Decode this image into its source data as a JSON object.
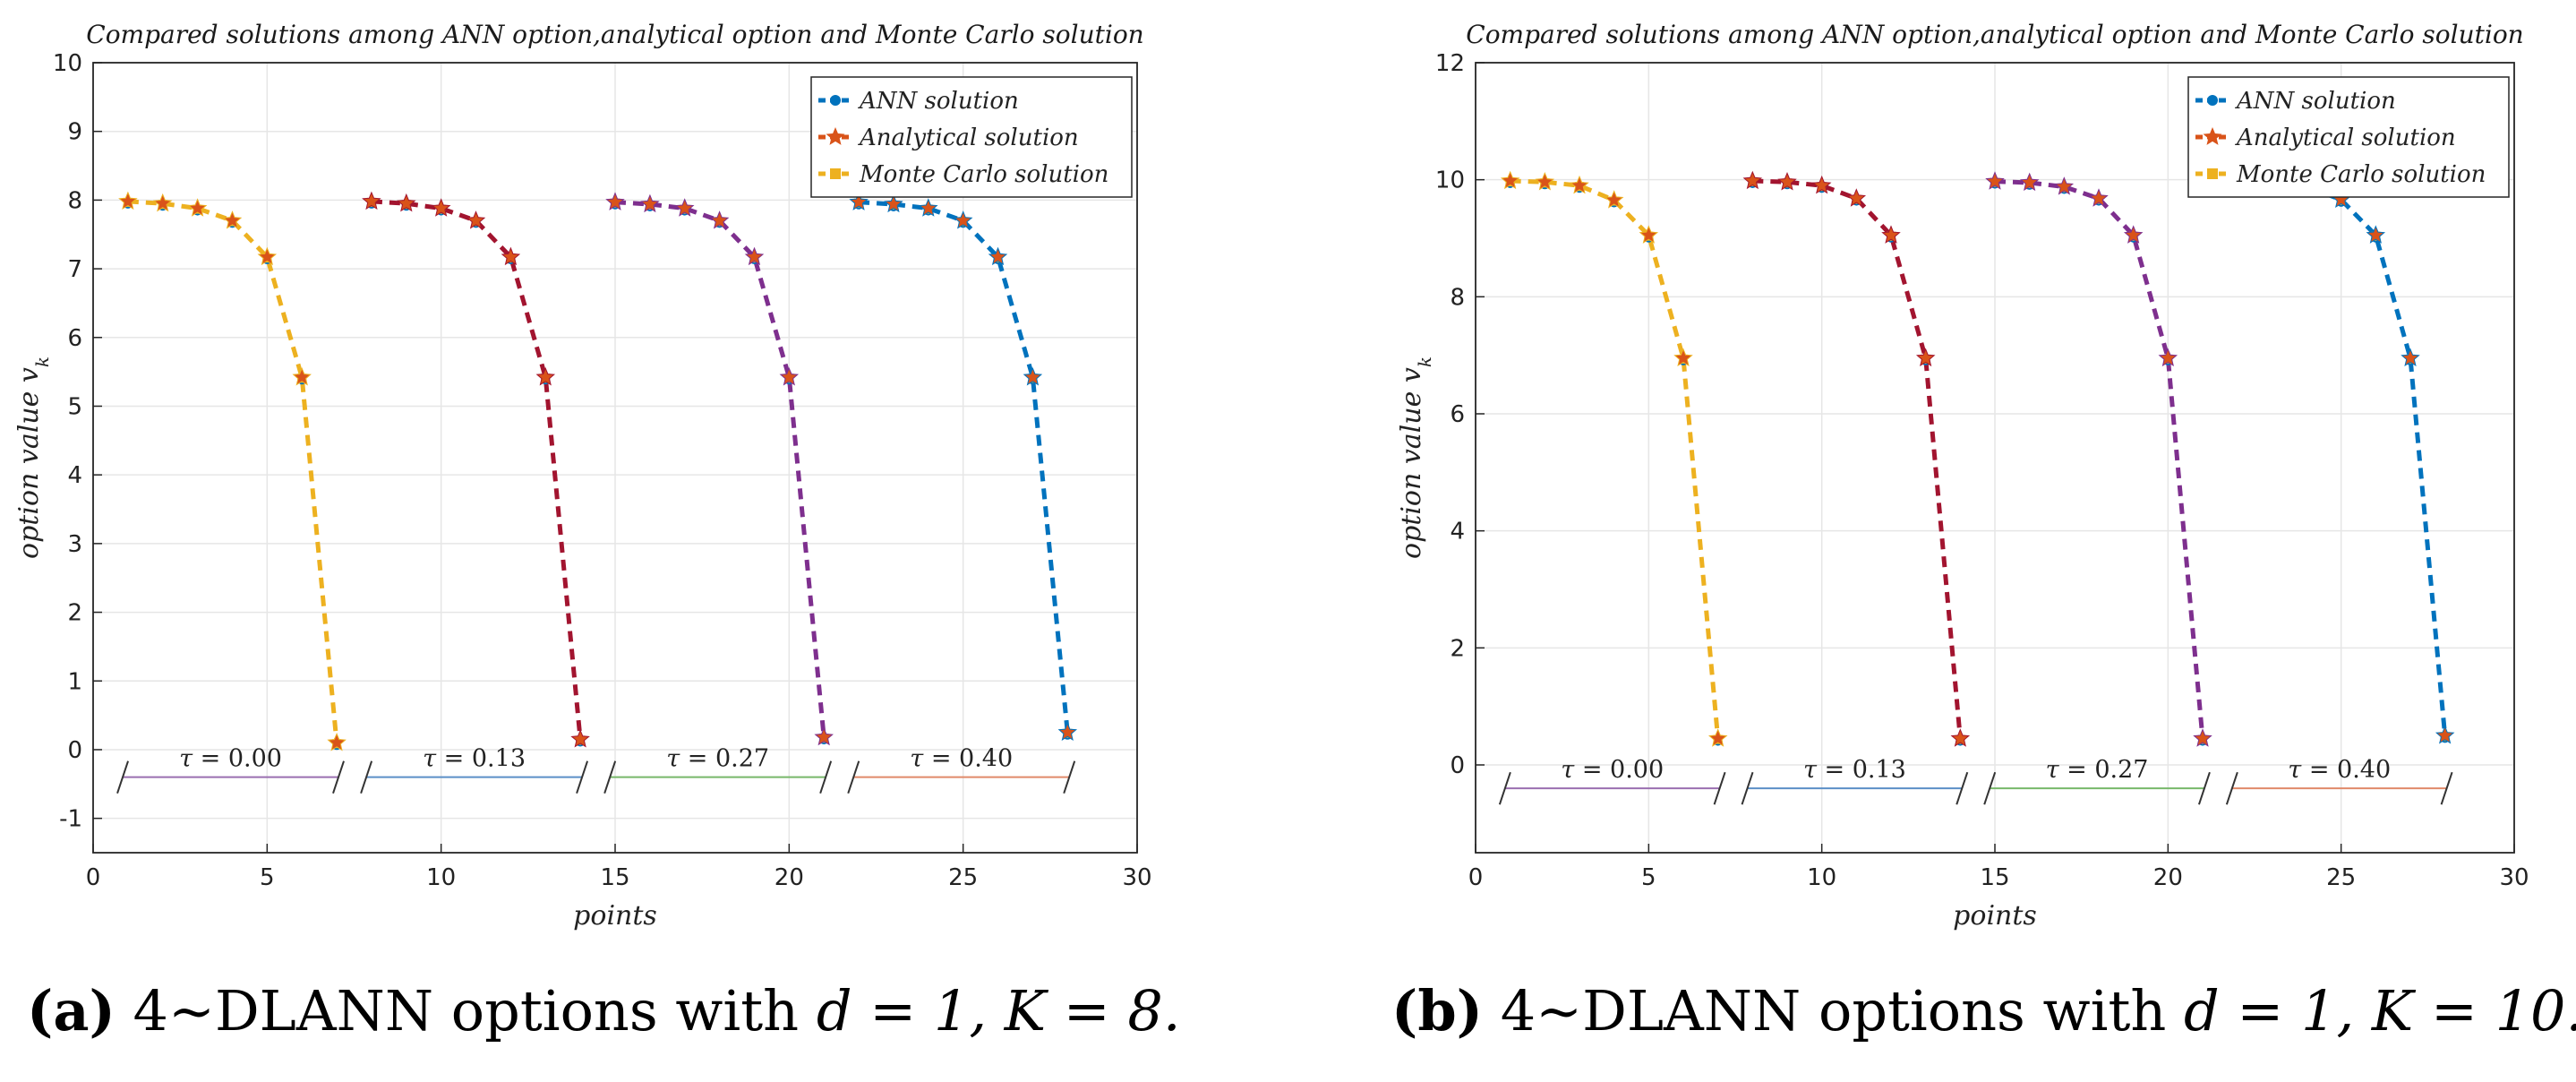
{
  "chart_data": [
    {
      "type": "line",
      "panel": "a",
      "title": "Compared solutions among ANN option,analytical option and Monte Carlo solution",
      "xlabel": "points",
      "ylabel": "option value v_k",
      "xlim": [
        0,
        30
      ],
      "ylim": [
        -1.5,
        10
      ],
      "xticks": [
        "0",
        "5",
        "10",
        "15",
        "20",
        "25",
        "30"
      ],
      "yticks": [
        "-1",
        "0",
        "1",
        "2",
        "3",
        "4",
        "5",
        "6",
        "7",
        "8",
        "9",
        "10"
      ],
      "grid": true,
      "legend_position": "top-right",
      "legend": [
        "ANN solution",
        "Analytical solution",
        "Monte Carlo solution"
      ],
      "groups": [
        {
          "tau_label": "τ = 0.00",
          "color": "#EDB120",
          "x": [
            1,
            2,
            3,
            4,
            5,
            6,
            7
          ],
          "y": [
            7.98,
            7.95,
            7.88,
            7.7,
            7.17,
            5.42,
            0.1
          ]
        },
        {
          "tau_label": "τ = 0.13",
          "color": "#A2142F",
          "x": [
            8,
            9,
            10,
            11,
            12,
            13,
            14
          ],
          "y": [
            7.98,
            7.95,
            7.88,
            7.7,
            7.17,
            5.42,
            0.15
          ]
        },
        {
          "tau_label": "τ = 0.27",
          "color": "#7E2F8E",
          "x": [
            15,
            16,
            17,
            18,
            19,
            20,
            21
          ],
          "y": [
            7.97,
            7.94,
            7.88,
            7.7,
            7.17,
            5.42,
            0.18
          ]
        },
        {
          "tau_label": "τ = 0.40",
          "color": "#0072BD",
          "x": [
            22,
            23,
            24,
            25,
            26,
            27,
            28
          ],
          "y": [
            7.97,
            7.94,
            7.88,
            7.7,
            7.17,
            5.42,
            0.25
          ]
        }
      ],
      "tau_bar_y": -0.4,
      "caption": {
        "tag": "(a)",
        "text_pre": " 4~DLANN options with ",
        "math": "d = 1, K = 8."
      }
    },
    {
      "type": "line",
      "panel": "b",
      "title": "Compared solutions among ANN option,analytical option and Monte Carlo solution",
      "xlabel": "points",
      "ylabel": "option value v_k",
      "xlim": [
        0,
        30
      ],
      "ylim": [
        -1.5,
        12
      ],
      "xticks": [
        "0",
        "5",
        "10",
        "15",
        "20",
        "25",
        "30"
      ],
      "yticks": [
        "0",
        "2",
        "4",
        "6",
        "8",
        "10",
        "12"
      ],
      "grid": true,
      "legend_position": "top-right",
      "legend": [
        "ANN solution",
        "Analytical solution",
        "Monte Carlo solution"
      ],
      "groups": [
        {
          "tau_label": "τ = 0.00",
          "color": "#EDB120",
          "x": [
            1,
            2,
            3,
            4,
            5,
            6,
            7
          ],
          "y": [
            9.98,
            9.96,
            9.9,
            9.65,
            9.05,
            6.95,
            0.45
          ]
        },
        {
          "tau_label": "τ = 0.13",
          "color": "#A2142F",
          "x": [
            8,
            9,
            10,
            11,
            12,
            13,
            14
          ],
          "y": [
            9.98,
            9.96,
            9.9,
            9.68,
            9.05,
            6.95,
            0.45
          ]
        },
        {
          "tau_label": "τ = 0.27",
          "color": "#7E2F8E",
          "x": [
            15,
            16,
            17,
            18,
            19,
            20,
            21
          ],
          "y": [
            9.97,
            9.95,
            9.88,
            9.68,
            9.05,
            6.95,
            0.45
          ]
        },
        {
          "tau_label": "τ = 0.40",
          "color": "#0072BD",
          "x": [
            22,
            23,
            24,
            25,
            26,
            27,
            28
          ],
          "y": [
            9.97,
            9.94,
            9.88,
            9.66,
            9.05,
            6.95,
            0.5
          ]
        }
      ],
      "tau_bar_y": -0.4,
      "caption": {
        "tag": "(b)",
        "text_pre": " 4~DLANN options with ",
        "math": "d = 1, K = 10."
      }
    }
  ],
  "legend_colors": {
    "ANN solution": "#0072BD",
    "Analytical solution": "#D95319",
    "Monte Carlo solution": "#EDB120"
  },
  "tau_bar_colors": [
    "#9a6fb0",
    "#5b8fc7",
    "#77b86a",
    "#e08a6a"
  ]
}
